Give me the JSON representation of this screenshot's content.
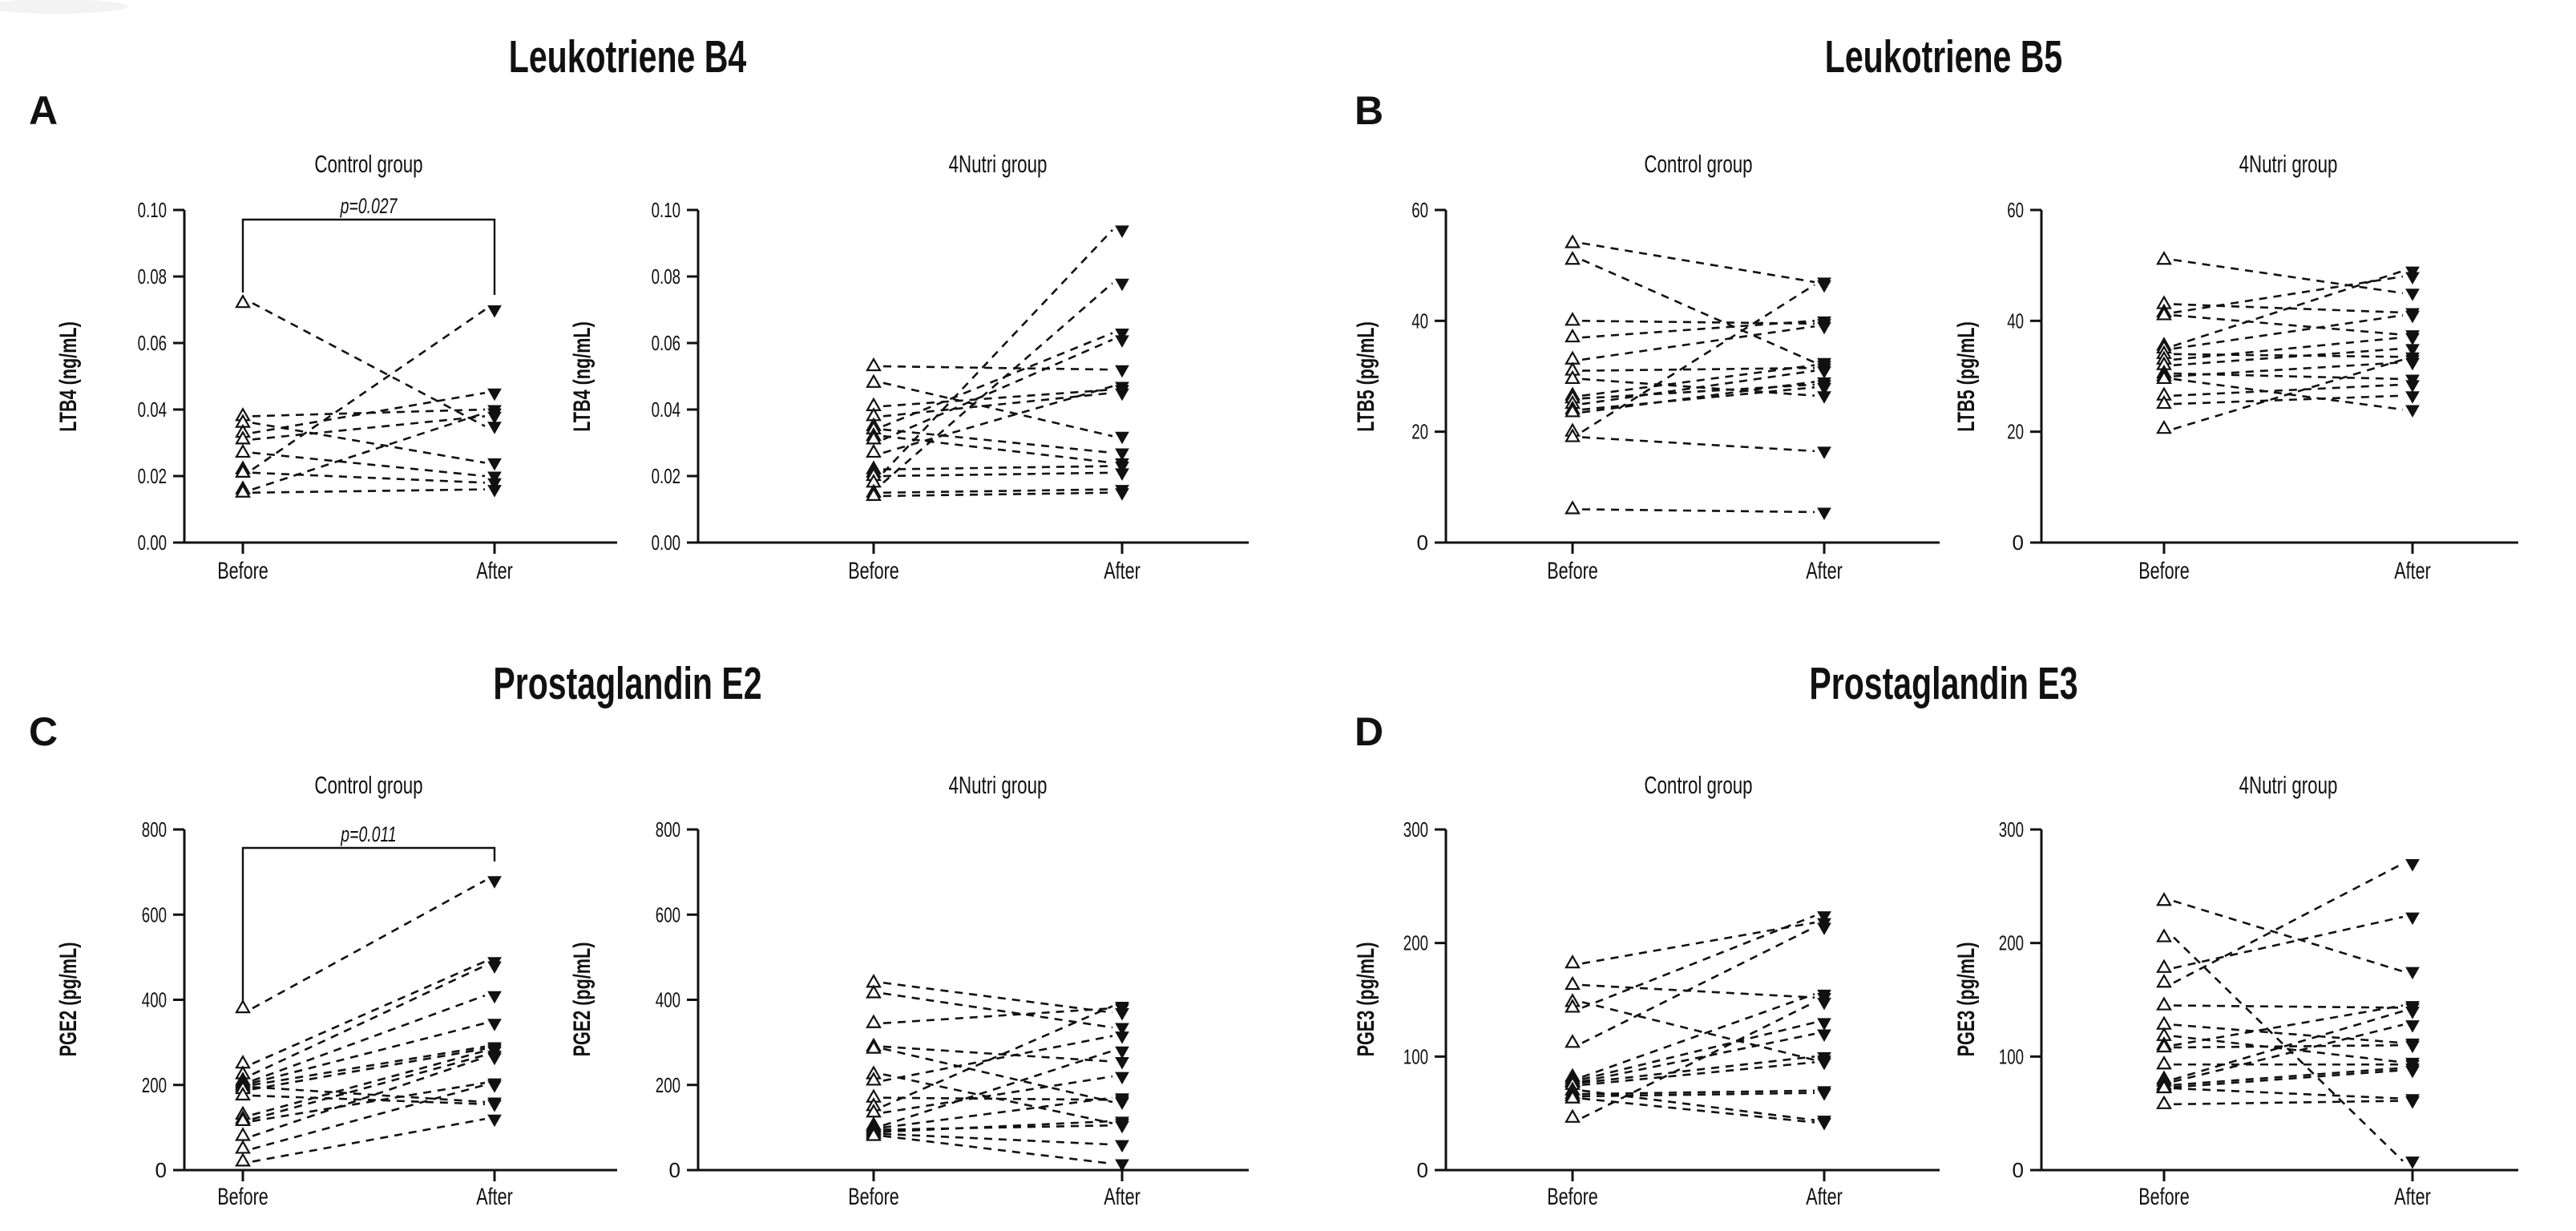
{
  "figure": {
    "background": "#ffffff",
    "ink_color": "#111111",
    "marker_before_icon": "open-up-triangle-icon",
    "marker_after_icon": "filled-down-triangle-icon",
    "line_style": "dashed",
    "panels": [
      {
        "letter": "A",
        "title": "Leukotriene B4"
      },
      {
        "letter": "B",
        "title": "Leukotriene B5"
      },
      {
        "letter": "C",
        "title": "Prostaglandin E2"
      },
      {
        "letter": "D",
        "title": "Prostaglandin E3"
      }
    ]
  },
  "chart_data": [
    {
      "type": "line",
      "panel": "A",
      "panel_title": "Leukotriene B4",
      "title": "Control group",
      "ylabel": "LTB4 (ng/mL)",
      "ylim": [
        0,
        0.1
      ],
      "yticks": [
        0,
        0.02,
        0.04,
        0.06,
        0.08,
        0.1
      ],
      "ytick_labels": [
        "0.00",
        "0.02",
        "0.04",
        "0.06",
        "0.08",
        "0.10"
      ],
      "categories": [
        "Before",
        "After"
      ],
      "significance": "p=0.027",
      "grid": false,
      "pairs": [
        [
          0.072,
          0.035
        ],
        [
          0.038,
          0.04
        ],
        [
          0.036,
          0.024
        ],
        [
          0.033,
          0.045
        ],
        [
          0.031,
          0.038
        ],
        [
          0.027,
          0.02
        ],
        [
          0.022,
          0.07
        ],
        [
          0.021,
          0.018
        ],
        [
          0.016,
          0.039
        ],
        [
          0.015,
          0.016
        ]
      ]
    },
    {
      "type": "line",
      "panel": "A",
      "panel_title": "Leukotriene B4",
      "title": "4Nutri group",
      "ylabel": "LTB4 (ng/mL)",
      "ylim": [
        0,
        0.1
      ],
      "yticks": [
        0,
        0.02,
        0.04,
        0.06,
        0.08,
        0.1
      ],
      "ytick_labels": [
        "0.00",
        "0.02",
        "0.04",
        "0.06",
        "0.08",
        "0.10"
      ],
      "categories": [
        "Before",
        "After"
      ],
      "grid": false,
      "pairs": [
        [
          0.053,
          0.052
        ],
        [
          0.048,
          0.032
        ],
        [
          0.041,
          0.046
        ],
        [
          0.038,
          0.045
        ],
        [
          0.035,
          0.063
        ],
        [
          0.034,
          0.027
        ],
        [
          0.032,
          0.024
        ],
        [
          0.031,
          0.061
        ],
        [
          0.027,
          0.047
        ],
        [
          0.022,
          0.023
        ],
        [
          0.021,
          0.094
        ],
        [
          0.02,
          0.021
        ],
        [
          0.018,
          0.078
        ],
        [
          0.015,
          0.016
        ],
        [
          0.014,
          0.015
        ]
      ]
    },
    {
      "type": "line",
      "panel": "B",
      "panel_title": "Leukotriene B5",
      "title": "Control group",
      "ylabel": "LTB5 (pg/mL)",
      "ylim": [
        0,
        60
      ],
      "yticks": [
        0,
        20,
        40,
        60
      ],
      "ytick_labels": [
        "0",
        "20",
        "40",
        "60"
      ],
      "categories": [
        "Before",
        "After"
      ],
      "grid": false,
      "pairs": [
        [
          54,
          47
        ],
        [
          51,
          32.5
        ],
        [
          40,
          39.5
        ],
        [
          37,
          40
        ],
        [
          33,
          39
        ],
        [
          31,
          31.5
        ],
        [
          29.5,
          26.5
        ],
        [
          26.5,
          32
        ],
        [
          26,
          28.5
        ],
        [
          25,
          31
        ],
        [
          24,
          28
        ],
        [
          23.5,
          29
        ],
        [
          20,
          46.5
        ],
        [
          19,
          16.5
        ],
        [
          6,
          5.5
        ]
      ]
    },
    {
      "type": "line",
      "panel": "B",
      "panel_title": "Leukotriene B5",
      "title": "4Nutri group",
      "ylabel": "LTB5 (pg/mL)",
      "ylim": [
        0,
        60
      ],
      "yticks": [
        0,
        20,
        40,
        60
      ],
      "ytick_labels": [
        "0",
        "20",
        "40",
        "60"
      ],
      "categories": [
        "Before",
        "After"
      ],
      "grid": false,
      "pairs": [
        [
          51,
          45
        ],
        [
          43,
          41.5
        ],
        [
          41.5,
          48
        ],
        [
          41,
          37.5
        ],
        [
          35.5,
          49
        ],
        [
          35,
          41
        ],
        [
          34,
          33.5
        ],
        [
          33,
          37
        ],
        [
          32,
          35
        ],
        [
          30.5,
          29.5
        ],
        [
          30,
          32.5
        ],
        [
          29.5,
          24
        ],
        [
          26.5,
          28.5
        ],
        [
          25,
          26.5
        ],
        [
          20.5,
          33
        ]
      ]
    },
    {
      "type": "line",
      "panel": "C",
      "panel_title": "Prostaglandin E2",
      "title": "Control group",
      "ylabel": "PGE2 (pg/mL)",
      "ylim": [
        0,
        800
      ],
      "yticks": [
        0,
        200,
        400,
        600,
        800
      ],
      "ytick_labels": [
        "0",
        "200",
        "400",
        "600",
        "800"
      ],
      "categories": [
        "Before",
        "After"
      ],
      "significance": "p=0.011",
      "grid": false,
      "pairs": [
        [
          380,
          680
        ],
        [
          250,
          490
        ],
        [
          225,
          480
        ],
        [
          210,
          410
        ],
        [
          205,
          345
        ],
        [
          200,
          290
        ],
        [
          195,
          160
        ],
        [
          190,
          285
        ],
        [
          175,
          155
        ],
        [
          130,
          280
        ],
        [
          120,
          270
        ],
        [
          115,
          205
        ],
        [
          80,
          265
        ],
        [
          50,
          200
        ],
        [
          20,
          120
        ]
      ]
    },
    {
      "type": "line",
      "panel": "C",
      "panel_title": "Prostaglandin E2",
      "title": "4Nutri group",
      "ylabel": "PGE2 (pg/mL)",
      "ylim": [
        0,
        800
      ],
      "yticks": [
        0,
        200,
        400,
        600,
        800
      ],
      "ytick_labels": [
        "0",
        "200",
        "400",
        "600",
        "800"
      ],
      "categories": [
        "Before",
        "After"
      ],
      "grid": false,
      "pairs": [
        [
          440,
          370
        ],
        [
          415,
          335
        ],
        [
          345,
          380
        ],
        [
          290,
          255
        ],
        [
          285,
          160
        ],
        [
          225,
          110
        ],
        [
          210,
          315
        ],
        [
          170,
          165
        ],
        [
          150,
          385
        ],
        [
          135,
          220
        ],
        [
          105,
          280
        ],
        [
          100,
          170
        ],
        [
          95,
          105
        ],
        [
          90,
          115
        ],
        [
          85,
          60
        ],
        [
          80,
          15
        ]
      ]
    },
    {
      "type": "line",
      "panel": "D",
      "panel_title": "Prostaglandin E3",
      "title": "Control group",
      "ylabel": "PGE3 (pg/mL)",
      "ylim": [
        0,
        300
      ],
      "yticks": [
        0,
        100,
        200,
        300
      ],
      "ytick_labels": [
        "0",
        "100",
        "200",
        "300"
      ],
      "categories": [
        "Before",
        "After"
      ],
      "grid": false,
      "pairs": [
        [
          182,
          218
        ],
        [
          163,
          152
        ],
        [
          148,
          97
        ],
        [
          143,
          224
        ],
        [
          112,
          214
        ],
        [
          82,
          155
        ],
        [
          80,
          130
        ],
        [
          78,
          120
        ],
        [
          77,
          100
        ],
        [
          75,
          95
        ],
        [
          70,
          44
        ],
        [
          67,
          70
        ],
        [
          65,
          68
        ],
        [
          63,
          42
        ],
        [
          46,
          148
        ]
      ]
    },
    {
      "type": "line",
      "panel": "D",
      "panel_title": "Prostaglandin E3",
      "title": "4Nutri group",
      "ylabel": "PGE3 (pg/mL)",
      "ylim": [
        0,
        300
      ],
      "yticks": [
        0,
        100,
        200,
        300
      ],
      "ytick_labels": [
        "0",
        "100",
        "200",
        "300"
      ],
      "categories": [
        "Before",
        "After"
      ],
      "grid": false,
      "pairs": [
        [
          237,
          175
        ],
        [
          205,
          8
        ],
        [
          178,
          223
        ],
        [
          165,
          270
        ],
        [
          145,
          143
        ],
        [
          128,
          112
        ],
        [
          118,
          95
        ],
        [
          110,
          145
        ],
        [
          108,
          110
        ],
        [
          93,
          93
        ],
        [
          80,
          140
        ],
        [
          78,
          128
        ],
        [
          75,
          90
        ],
        [
          73,
          88
        ],
        [
          72,
          63
        ],
        [
          58,
          61
        ]
      ]
    }
  ]
}
